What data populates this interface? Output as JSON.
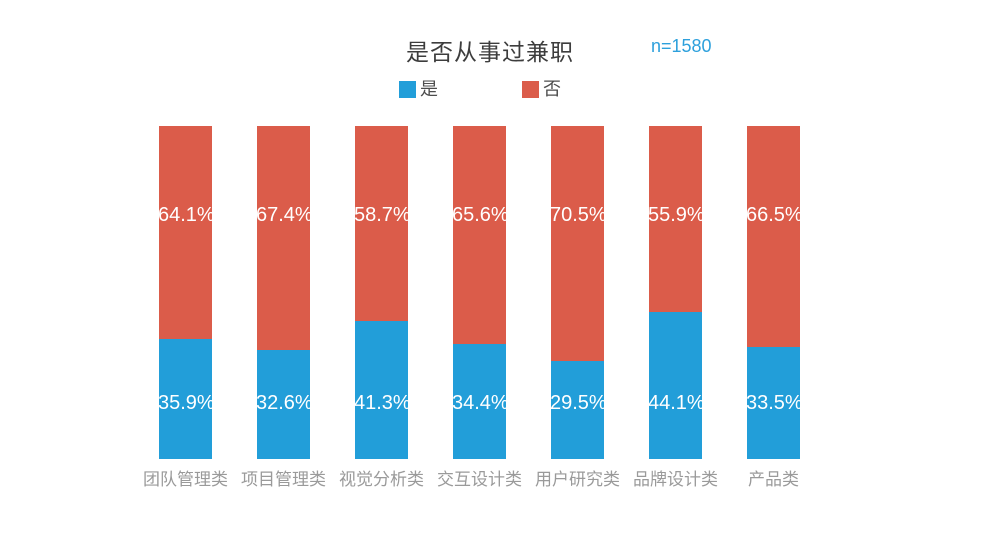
{
  "header": {
    "title": "是否从事过兼职",
    "sample_label": "n=1580"
  },
  "colors": {
    "yes_blue": "#229ed9",
    "no_red": "#db5c4a",
    "value_label_text": "#ffffff",
    "category_text": "#9a9a9a",
    "title_text": "#3d3d3d",
    "sample_text": "#2da0dc",
    "background": "#ffffff"
  },
  "legend": [
    {
      "label": "是",
      "color": "#229ed9"
    },
    {
      "label": "否",
      "color": "#db5c4a"
    }
  ],
  "chart_data": {
    "type": "bar",
    "stacked": true,
    "percentage": true,
    "title": "是否从事过兼职",
    "subtitle": "n=1580",
    "xlabel": "",
    "ylabel": "",
    "ylim": [
      0,
      100
    ],
    "grid": false,
    "legend_position": "top",
    "value_suffix": "%",
    "categories": [
      "团队管理类",
      "项目管理类",
      "视觉分析类",
      "交互设计类",
      "用户研究类",
      "品牌设计类",
      "产品类"
    ],
    "series": [
      {
        "name": "是",
        "color": "#229ed9",
        "values": [
          35.9,
          32.6,
          41.3,
          34.4,
          29.5,
          44.1,
          33.5
        ]
      },
      {
        "name": "否",
        "color": "#db5c4a",
        "values": [
          64.1,
          67.4,
          58.7,
          65.6,
          70.5,
          55.9,
          66.5
        ]
      }
    ]
  }
}
